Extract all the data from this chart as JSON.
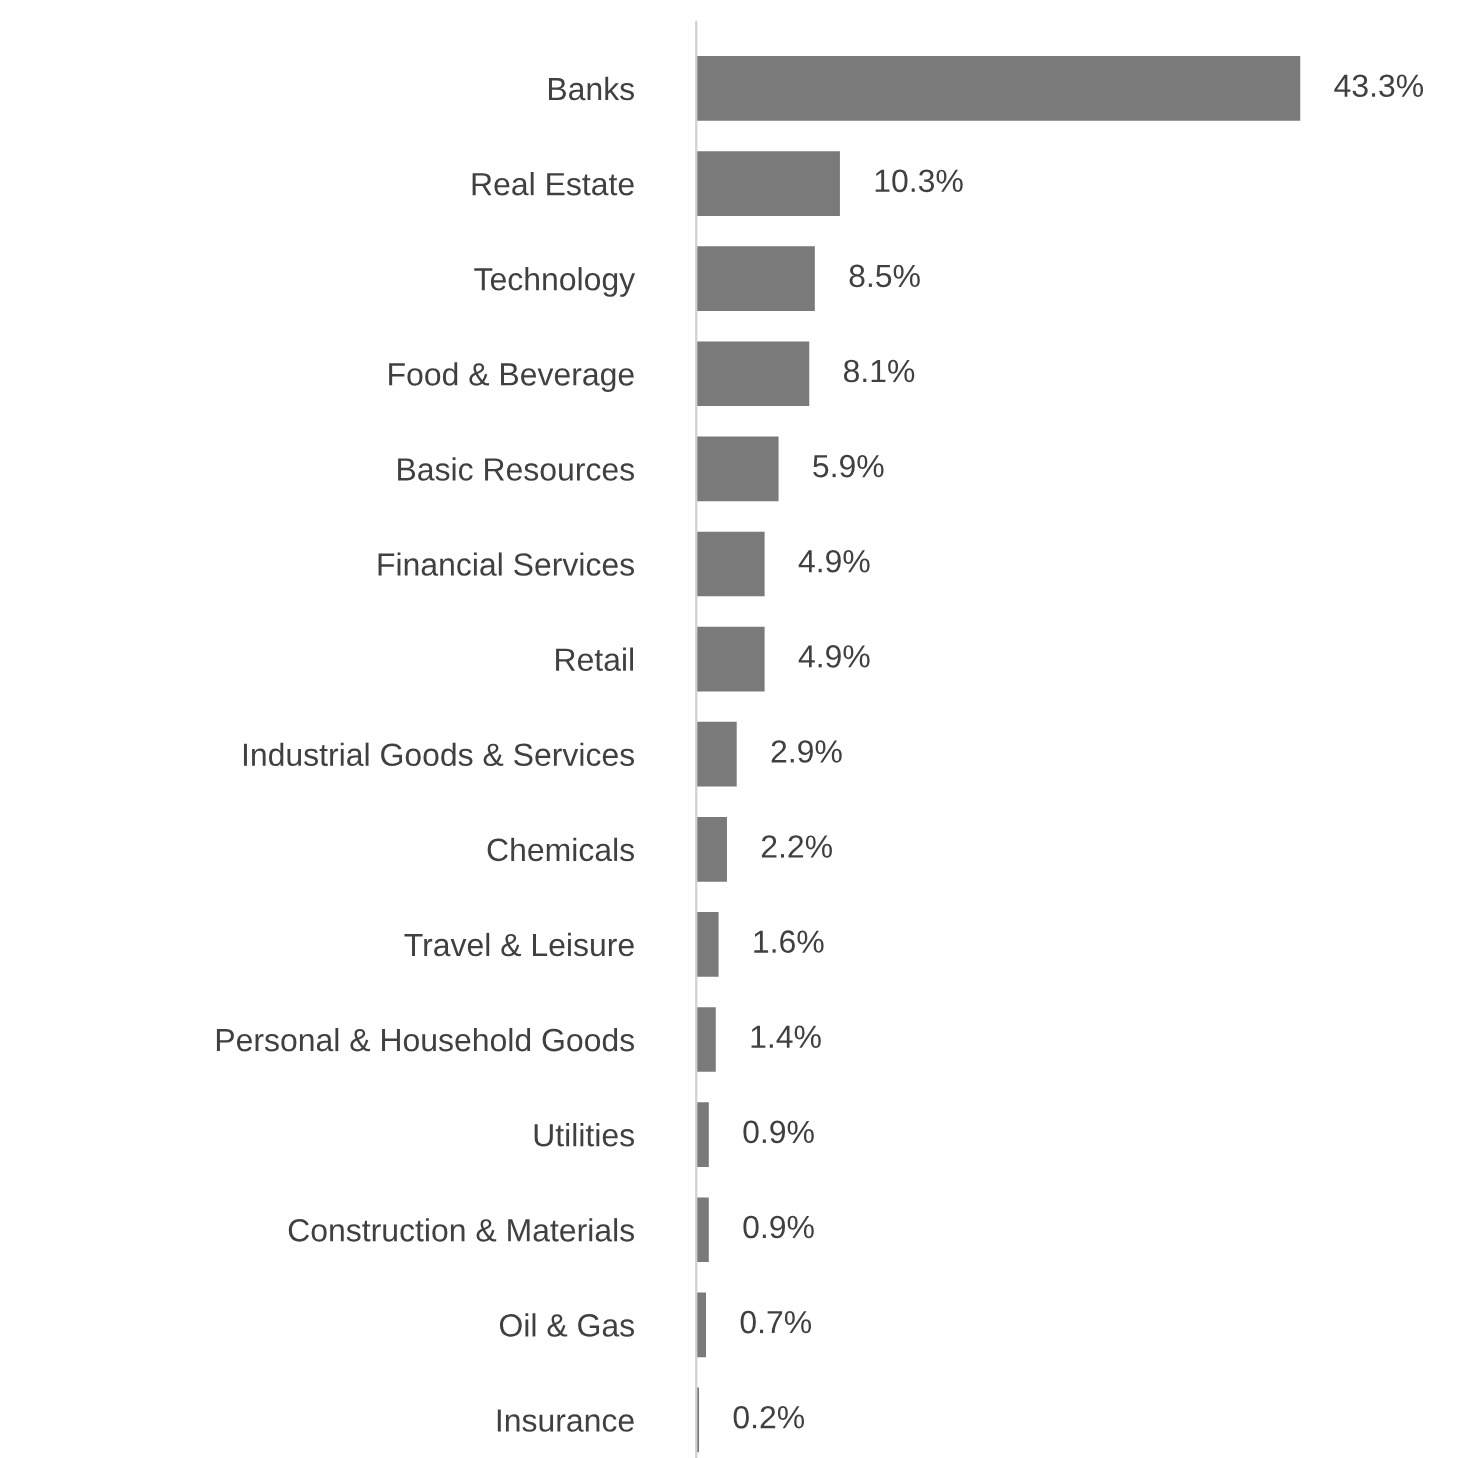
{
  "chart_data": {
    "type": "bar",
    "orientation": "horizontal",
    "categories": [
      "Banks",
      "Real Estate",
      "Technology",
      "Food & Beverage",
      "Basic Resources",
      "Financial Services",
      "Retail",
      "Industrial Goods & Services",
      "Chemicals",
      "Travel & Leisure",
      "Personal & Household Goods",
      "Utilities",
      "Construction & Materials",
      "Oil & Gas",
      "Insurance"
    ],
    "values": [
      43.3,
      10.3,
      8.5,
      8.1,
      5.9,
      4.9,
      4.9,
      2.9,
      2.2,
      1.6,
      1.4,
      0.9,
      0.9,
      0.7,
      0.2
    ],
    "value_labels": [
      "43.3%",
      "10.3%",
      "8.5%",
      "8.1%",
      "5.9%",
      "4.9%",
      "4.9%",
      "2.9%",
      "2.2%",
      "1.6%",
      "1.4%",
      "0.9%",
      "0.9%",
      "0.7%",
      "0.2%"
    ],
    "color": "#7a7a7a",
    "grid": false,
    "legend": false
  }
}
